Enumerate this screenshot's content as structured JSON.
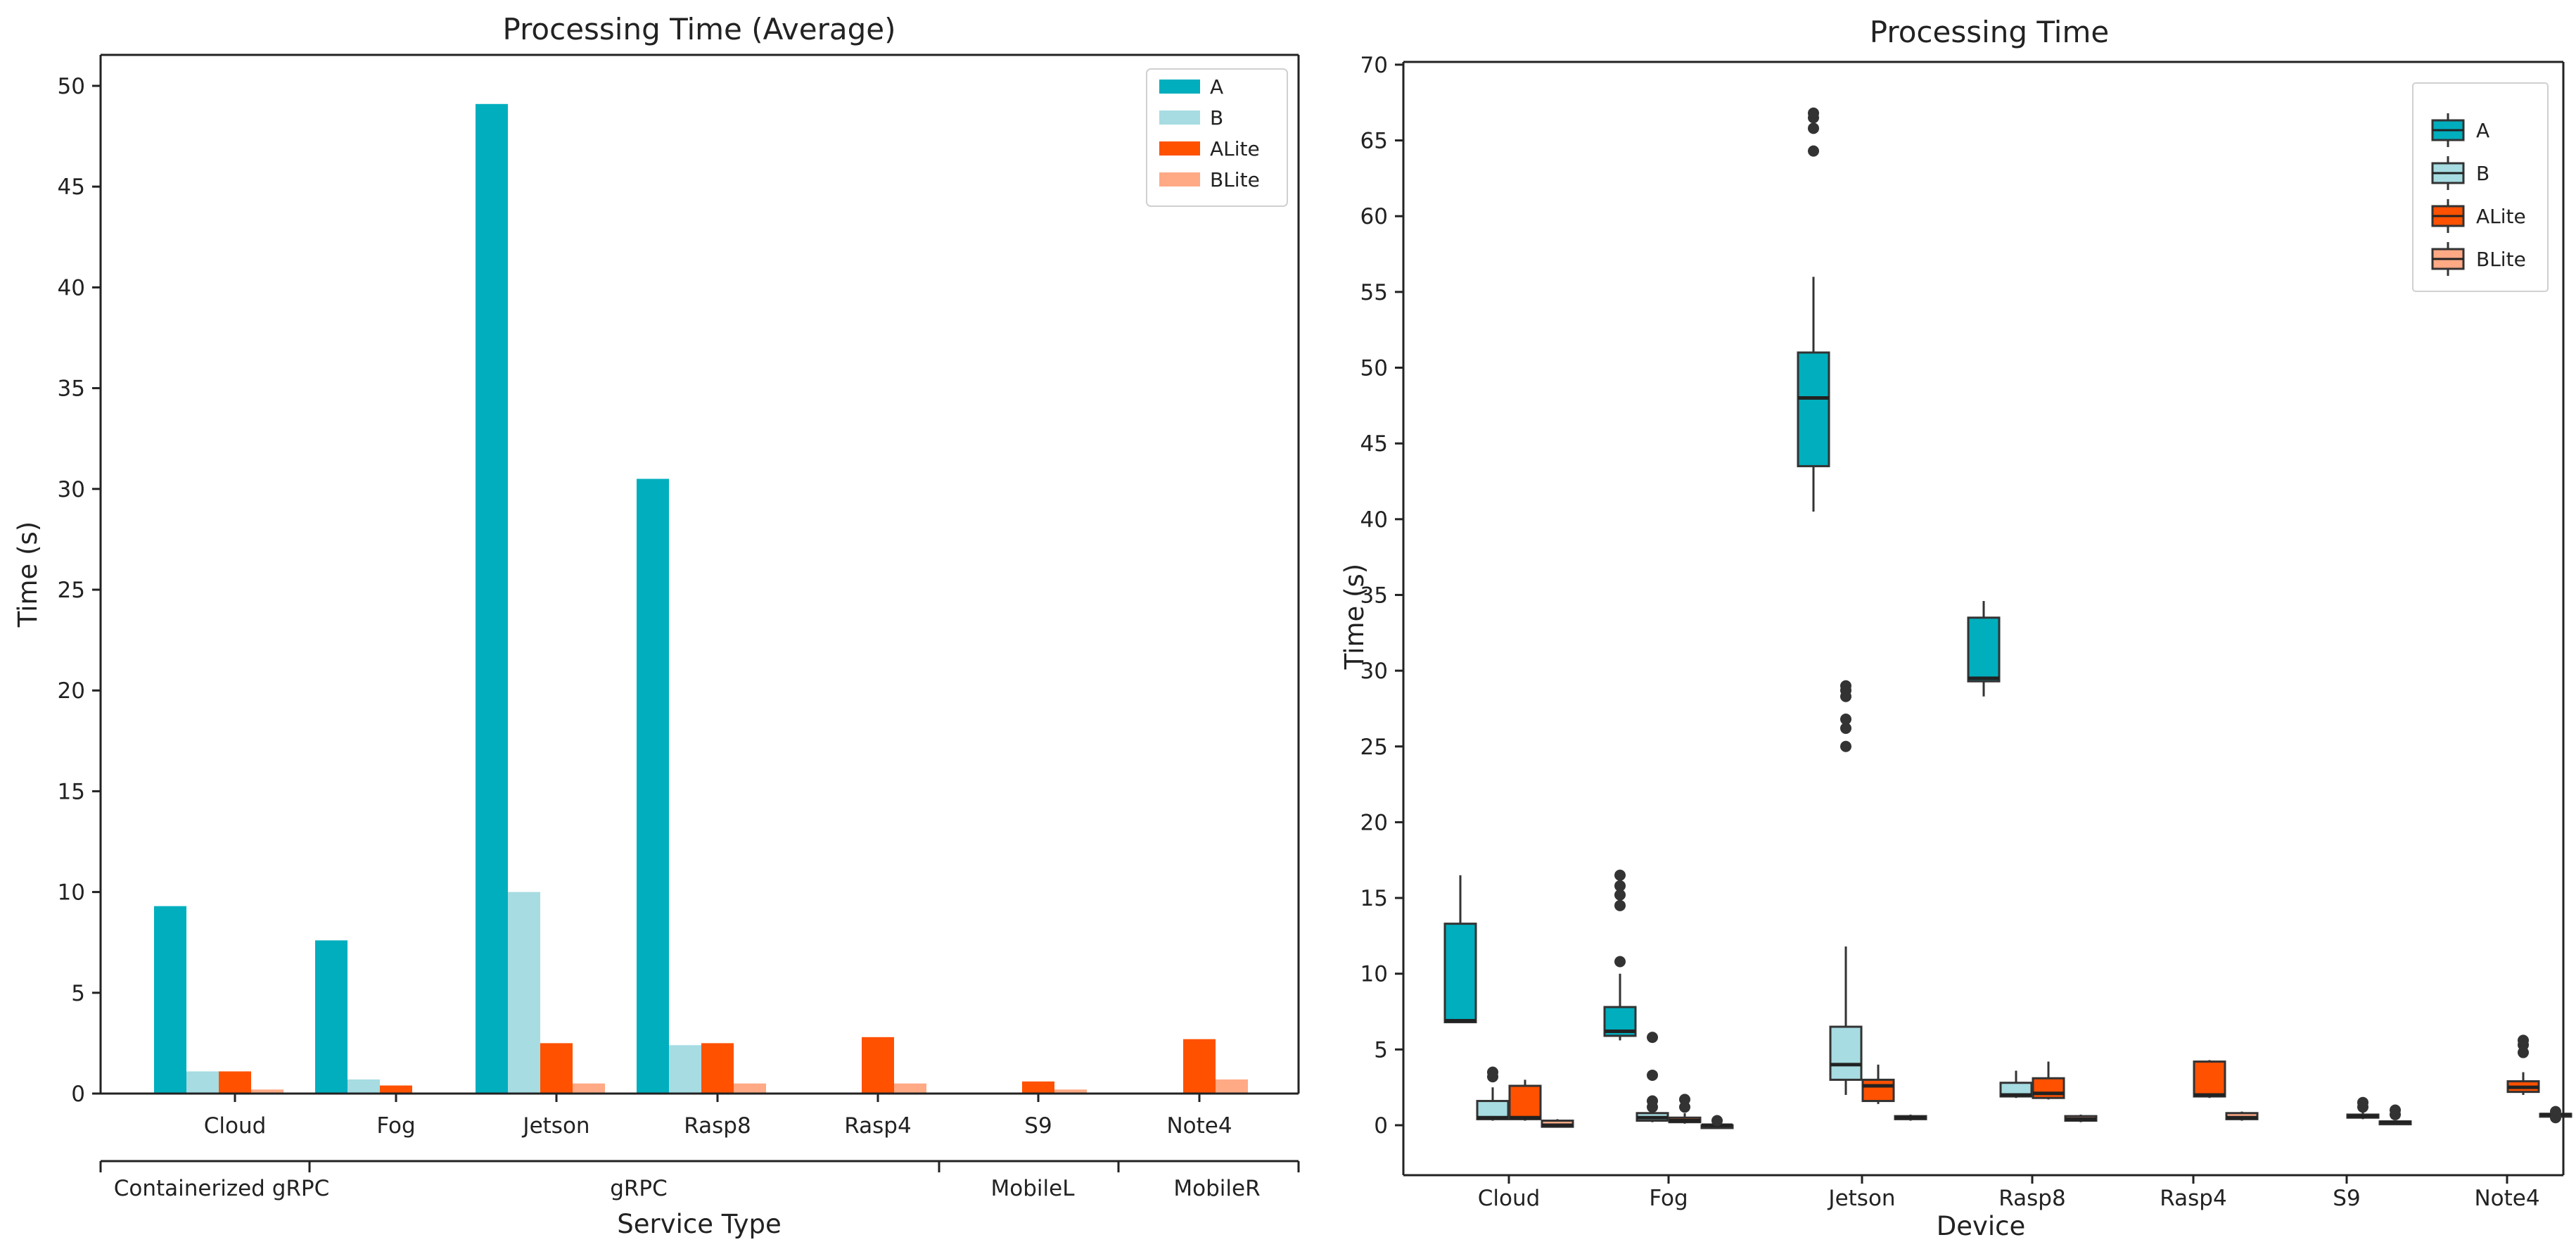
{
  "colors": {
    "A": "#00AEBD",
    "B": "#A6DCE2",
    "ALite": "#FF5100",
    "BLite": "#FFA985"
  },
  "left_chart": {
    "title": "Processing Time (Average)",
    "xlabel": "Service Type",
    "ylabel": "Time (s)",
    "group_labels": [
      "Containerized gRPC",
      "gRPC",
      "MobileL",
      "MobileR"
    ]
  },
  "right_chart": {
    "title": "Processing Time",
    "xlabel": "Device",
    "ylabel": "Time (s)"
  },
  "chart_data": [
    {
      "type": "bar",
      "title": "Processing Time (Average)",
      "xlabel": "Service Type",
      "ylabel": "Time (s)",
      "ylim": [
        0,
        51
      ],
      "yticks": [
        0,
        5,
        10,
        15,
        20,
        25,
        30,
        35,
        40,
        45,
        50
      ],
      "categories": [
        "Cloud",
        "Fog",
        "Jetson",
        "Rasp8",
        "Rasp4",
        "S9",
        "Note4"
      ],
      "groups": [
        {
          "label": "Containerized gRPC",
          "categories": [
            "Cloud"
          ]
        },
        {
          "label": "gRPC",
          "categories": [
            "Fog",
            "Jetson",
            "Rasp8",
            "Rasp4"
          ]
        },
        {
          "label": "MobileL",
          "categories": [
            "S9"
          ]
        },
        {
          "label": "MobileR",
          "categories": [
            "Note4"
          ]
        }
      ],
      "legend": {
        "position": "top-right",
        "entries": [
          "A",
          "B",
          "ALite",
          "BLite"
        ]
      },
      "series": [
        {
          "name": "A",
          "values": [
            9.3,
            7.6,
            49.1,
            30.5,
            null,
            null,
            null
          ]
        },
        {
          "name": "B",
          "values": [
            1.1,
            0.7,
            10.0,
            2.4,
            null,
            null,
            null
          ]
        },
        {
          "name": "ALite",
          "values": [
            1.1,
            0.4,
            2.5,
            2.5,
            2.8,
            0.6,
            2.7
          ]
        },
        {
          "name": "BLite",
          "values": [
            0.2,
            0.0,
            0.5,
            0.5,
            0.5,
            0.2,
            0.7
          ]
        }
      ],
      "grid": false
    },
    {
      "type": "box",
      "title": "Processing Time",
      "xlabel": "Device",
      "ylabel": "Time (s)",
      "ylim": [
        -3,
        70
      ],
      "yticks": [
        0,
        5,
        10,
        15,
        20,
        25,
        30,
        35,
        40,
        45,
        50,
        55,
        60,
        65,
        70
      ],
      "categories": [
        "Cloud",
        "Fog",
        "Jetson",
        "Rasp8",
        "Rasp4",
        "S9",
        "Note4"
      ],
      "legend": {
        "position": "top-right",
        "entries": [
          "A",
          "B",
          "ALite",
          "BLite"
        ]
      },
      "grid": false,
      "boxes": [
        {
          "category": "Cloud",
          "series": "A",
          "min": 6.8,
          "q1": 6.8,
          "median": 6.9,
          "q3": 13.3,
          "max": 16.5,
          "outliers": []
        },
        {
          "category": "Cloud",
          "series": "B",
          "min": 0.3,
          "q1": 0.4,
          "median": 0.5,
          "q3": 1.6,
          "max": 2.5,
          "outliers": [
            3.2,
            3.5
          ]
        },
        {
          "category": "Cloud",
          "series": "ALite",
          "min": 0.3,
          "q1": 0.4,
          "median": 0.5,
          "q3": 2.6,
          "max": 3.0,
          "outliers": []
        },
        {
          "category": "Cloud",
          "series": "BLite",
          "min": -0.1,
          "q1": -0.1,
          "median": 0.0,
          "q3": 0.3,
          "max": 0.4,
          "outliers": []
        },
        {
          "category": "Fog",
          "series": "A",
          "min": 5.6,
          "q1": 5.9,
          "median": 6.2,
          "q3": 7.8,
          "max": 10.0,
          "outliers": [
            10.8,
            14.5,
            15.2,
            15.8,
            16.5
          ]
        },
        {
          "category": "Fog",
          "series": "B",
          "min": 0.2,
          "q1": 0.3,
          "median": 0.5,
          "q3": 0.8,
          "max": 1.0,
          "outliers": [
            1.2,
            1.6,
            3.3,
            5.8
          ]
        },
        {
          "category": "Fog",
          "series": "ALite",
          "min": 0.1,
          "q1": 0.2,
          "median": 0.3,
          "q3": 0.5,
          "max": 0.8,
          "outliers": [
            1.2,
            1.7
          ]
        },
        {
          "category": "Fog",
          "series": "BLite",
          "min": -0.1,
          "q1": -0.1,
          "median": 0.0,
          "q3": 0.0,
          "max": 0.1,
          "outliers": [
            0.3
          ]
        },
        {
          "category": "Jetson",
          "series": "A",
          "min": 40.5,
          "q1": 43.5,
          "median": 48.0,
          "q3": 51.0,
          "max": 56.0,
          "outliers": [
            64.3,
            65.8,
            66.5,
            66.8
          ]
        },
        {
          "category": "Jetson",
          "series": "B",
          "min": 2.0,
          "q1": 3.0,
          "median": 4.0,
          "q3": 6.5,
          "max": 11.8,
          "outliers": [
            25.0,
            26.2,
            26.8,
            28.3,
            28.7,
            29.0
          ]
        },
        {
          "category": "Jetson",
          "series": "ALite",
          "min": 1.4,
          "q1": 1.6,
          "median": 2.6,
          "q3": 3.0,
          "max": 4.0,
          "outliers": []
        },
        {
          "category": "Jetson",
          "series": "BLite",
          "min": 0.3,
          "q1": 0.4,
          "median": 0.5,
          "q3": 0.6,
          "max": 0.7,
          "outliers": []
        },
        {
          "category": "Rasp8",
          "series": "A",
          "min": 28.3,
          "q1": 29.3,
          "median": 29.5,
          "q3": 33.5,
          "max": 34.6,
          "outliers": []
        },
        {
          "category": "Rasp8",
          "series": "B",
          "min": 1.8,
          "q1": 1.9,
          "median": 2.0,
          "q3": 2.8,
          "max": 3.6,
          "outliers": []
        },
        {
          "category": "Rasp8",
          "series": "ALite",
          "min": 1.7,
          "q1": 1.8,
          "median": 2.1,
          "q3": 3.1,
          "max": 4.2,
          "outliers": []
        },
        {
          "category": "Rasp8",
          "series": "BLite",
          "min": 0.2,
          "q1": 0.3,
          "median": 0.4,
          "q3": 0.6,
          "max": 0.7,
          "outliers": []
        },
        {
          "category": "Rasp4",
          "series": "ALite",
          "min": 1.8,
          "q1": 1.9,
          "median": 2.0,
          "q3": 4.2,
          "max": 4.3,
          "outliers": []
        },
        {
          "category": "Rasp4",
          "series": "BLite",
          "min": 0.3,
          "q1": 0.4,
          "median": 0.5,
          "q3": 0.8,
          "max": 0.9,
          "outliers": []
        },
        {
          "category": "S9",
          "series": "ALite",
          "min": 0.4,
          "q1": 0.5,
          "median": 0.6,
          "q3": 0.7,
          "max": 0.9,
          "outliers": [
            1.2,
            1.5
          ]
        },
        {
          "category": "S9",
          "series": "BLite",
          "min": 0.1,
          "q1": 0.15,
          "median": 0.2,
          "q3": 0.25,
          "max": 0.3,
          "outliers": [
            0.7,
            1.0
          ]
        },
        {
          "category": "Note4",
          "series": "ALite",
          "min": 2.0,
          "q1": 2.2,
          "median": 2.5,
          "q3": 2.9,
          "max": 3.5,
          "outliers": [
            4.8,
            5.3,
            5.6
          ]
        },
        {
          "category": "Note4",
          "series": "BLite",
          "min": 0.6,
          "q1": 0.65,
          "median": 0.7,
          "q3": 0.75,
          "max": 0.8,
          "outliers": [
            0.5,
            0.9
          ]
        }
      ]
    }
  ]
}
